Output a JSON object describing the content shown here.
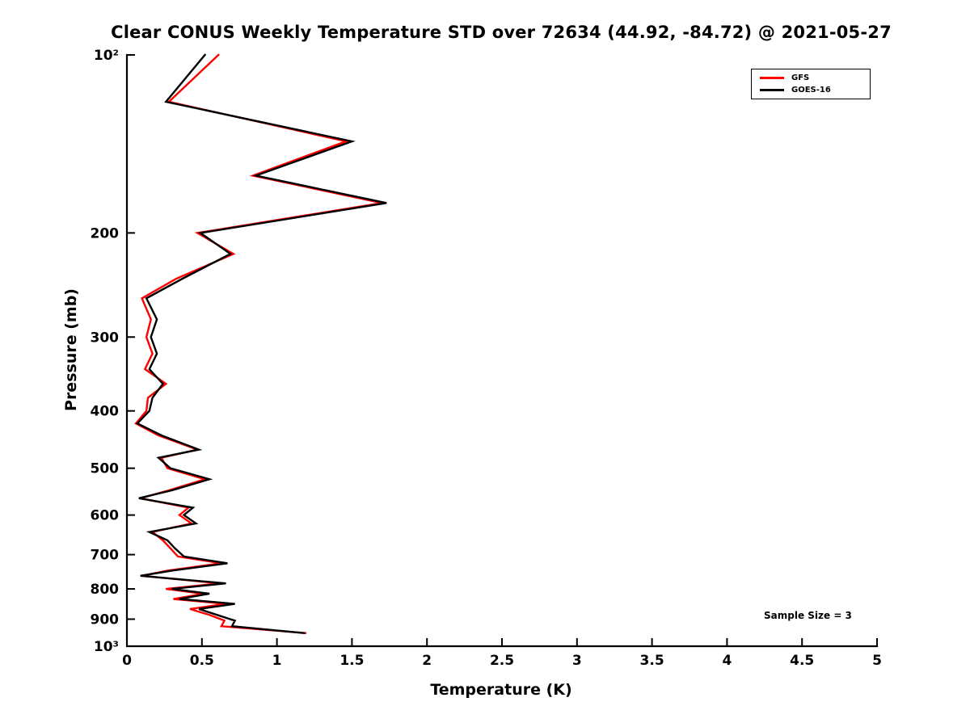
{
  "annotations": {
    "sample_size": "Sample Size = 3"
  },
  "chart_data": {
    "type": "line",
    "title": "Clear CONUS Weekly Temperature STD over 72634 (44.92, -84.72) @ 2021-05-27",
    "xlabel": "Temperature (K)",
    "ylabel": "Pressure (mb)",
    "xlim": [
      0,
      5
    ],
    "ylim": [
      100,
      1000
    ],
    "yscale": "log",
    "y_direction": "increasing-downward",
    "grid": false,
    "legend_position": "top-right",
    "xticks": {
      "values": [
        0,
        0.5,
        1,
        1.5,
        2,
        2.5,
        3,
        3.5,
        4,
        4.5,
        5
      ],
      "labels": [
        "0",
        "0.5",
        "1",
        "1.5",
        "2",
        "2.5",
        "3",
        "3.5",
        "4",
        "4.5",
        "5"
      ]
    },
    "yticks": {
      "values": [
        100,
        200,
        300,
        400,
        500,
        600,
        700,
        800,
        900,
        1000
      ],
      "labels": [
        "10²",
        "200",
        "300",
        "400",
        "500",
        "600",
        "700",
        "800",
        "900",
        "10³"
      ]
    },
    "levels_mb": [
      100,
      120,
      140,
      160,
      178,
      200,
      217,
      239,
      258,
      280,
      300,
      320,
      340,
      360,
      380,
      400,
      420,
      440,
      465,
      480,
      500,
      522,
      545,
      562,
      583,
      600,
      620,
      641,
      662,
      683,
      705,
      724,
      745,
      760,
      783,
      800,
      815,
      832,
      848,
      865,
      885,
      905,
      925,
      950
    ],
    "series": [
      {
        "name": "GFS",
        "color": "#ff0000",
        "values": [
          0.61,
          0.28,
          1.46,
          0.84,
          1.7,
          0.47,
          0.71,
          0.33,
          0.1,
          0.16,
          0.13,
          0.17,
          0.12,
          0.26,
          0.14,
          0.13,
          0.06,
          0.21,
          0.47,
          0.23,
          0.27,
          0.52,
          0.28,
          0.09,
          0.41,
          0.35,
          0.43,
          0.17,
          0.24,
          0.29,
          0.34,
          0.63,
          0.27,
          0.1,
          0.62,
          0.26,
          0.51,
          0.31,
          0.66,
          0.42,
          0.55,
          0.65,
          0.63,
          1.19
        ]
      },
      {
        "name": "GOES-16",
        "color": "#000000",
        "values": [
          0.52,
          0.26,
          1.5,
          0.86,
          1.73,
          0.49,
          0.69,
          0.37,
          0.13,
          0.2,
          0.16,
          0.2,
          0.15,
          0.24,
          0.17,
          0.15,
          0.07,
          0.23,
          0.48,
          0.21,
          0.29,
          0.55,
          0.3,
          0.08,
          0.44,
          0.38,
          0.46,
          0.15,
          0.27,
          0.32,
          0.38,
          0.67,
          0.3,
          0.09,
          0.66,
          0.3,
          0.55,
          0.35,
          0.72,
          0.48,
          0.6,
          0.72,
          0.7,
          1.18
        ]
      }
    ]
  }
}
